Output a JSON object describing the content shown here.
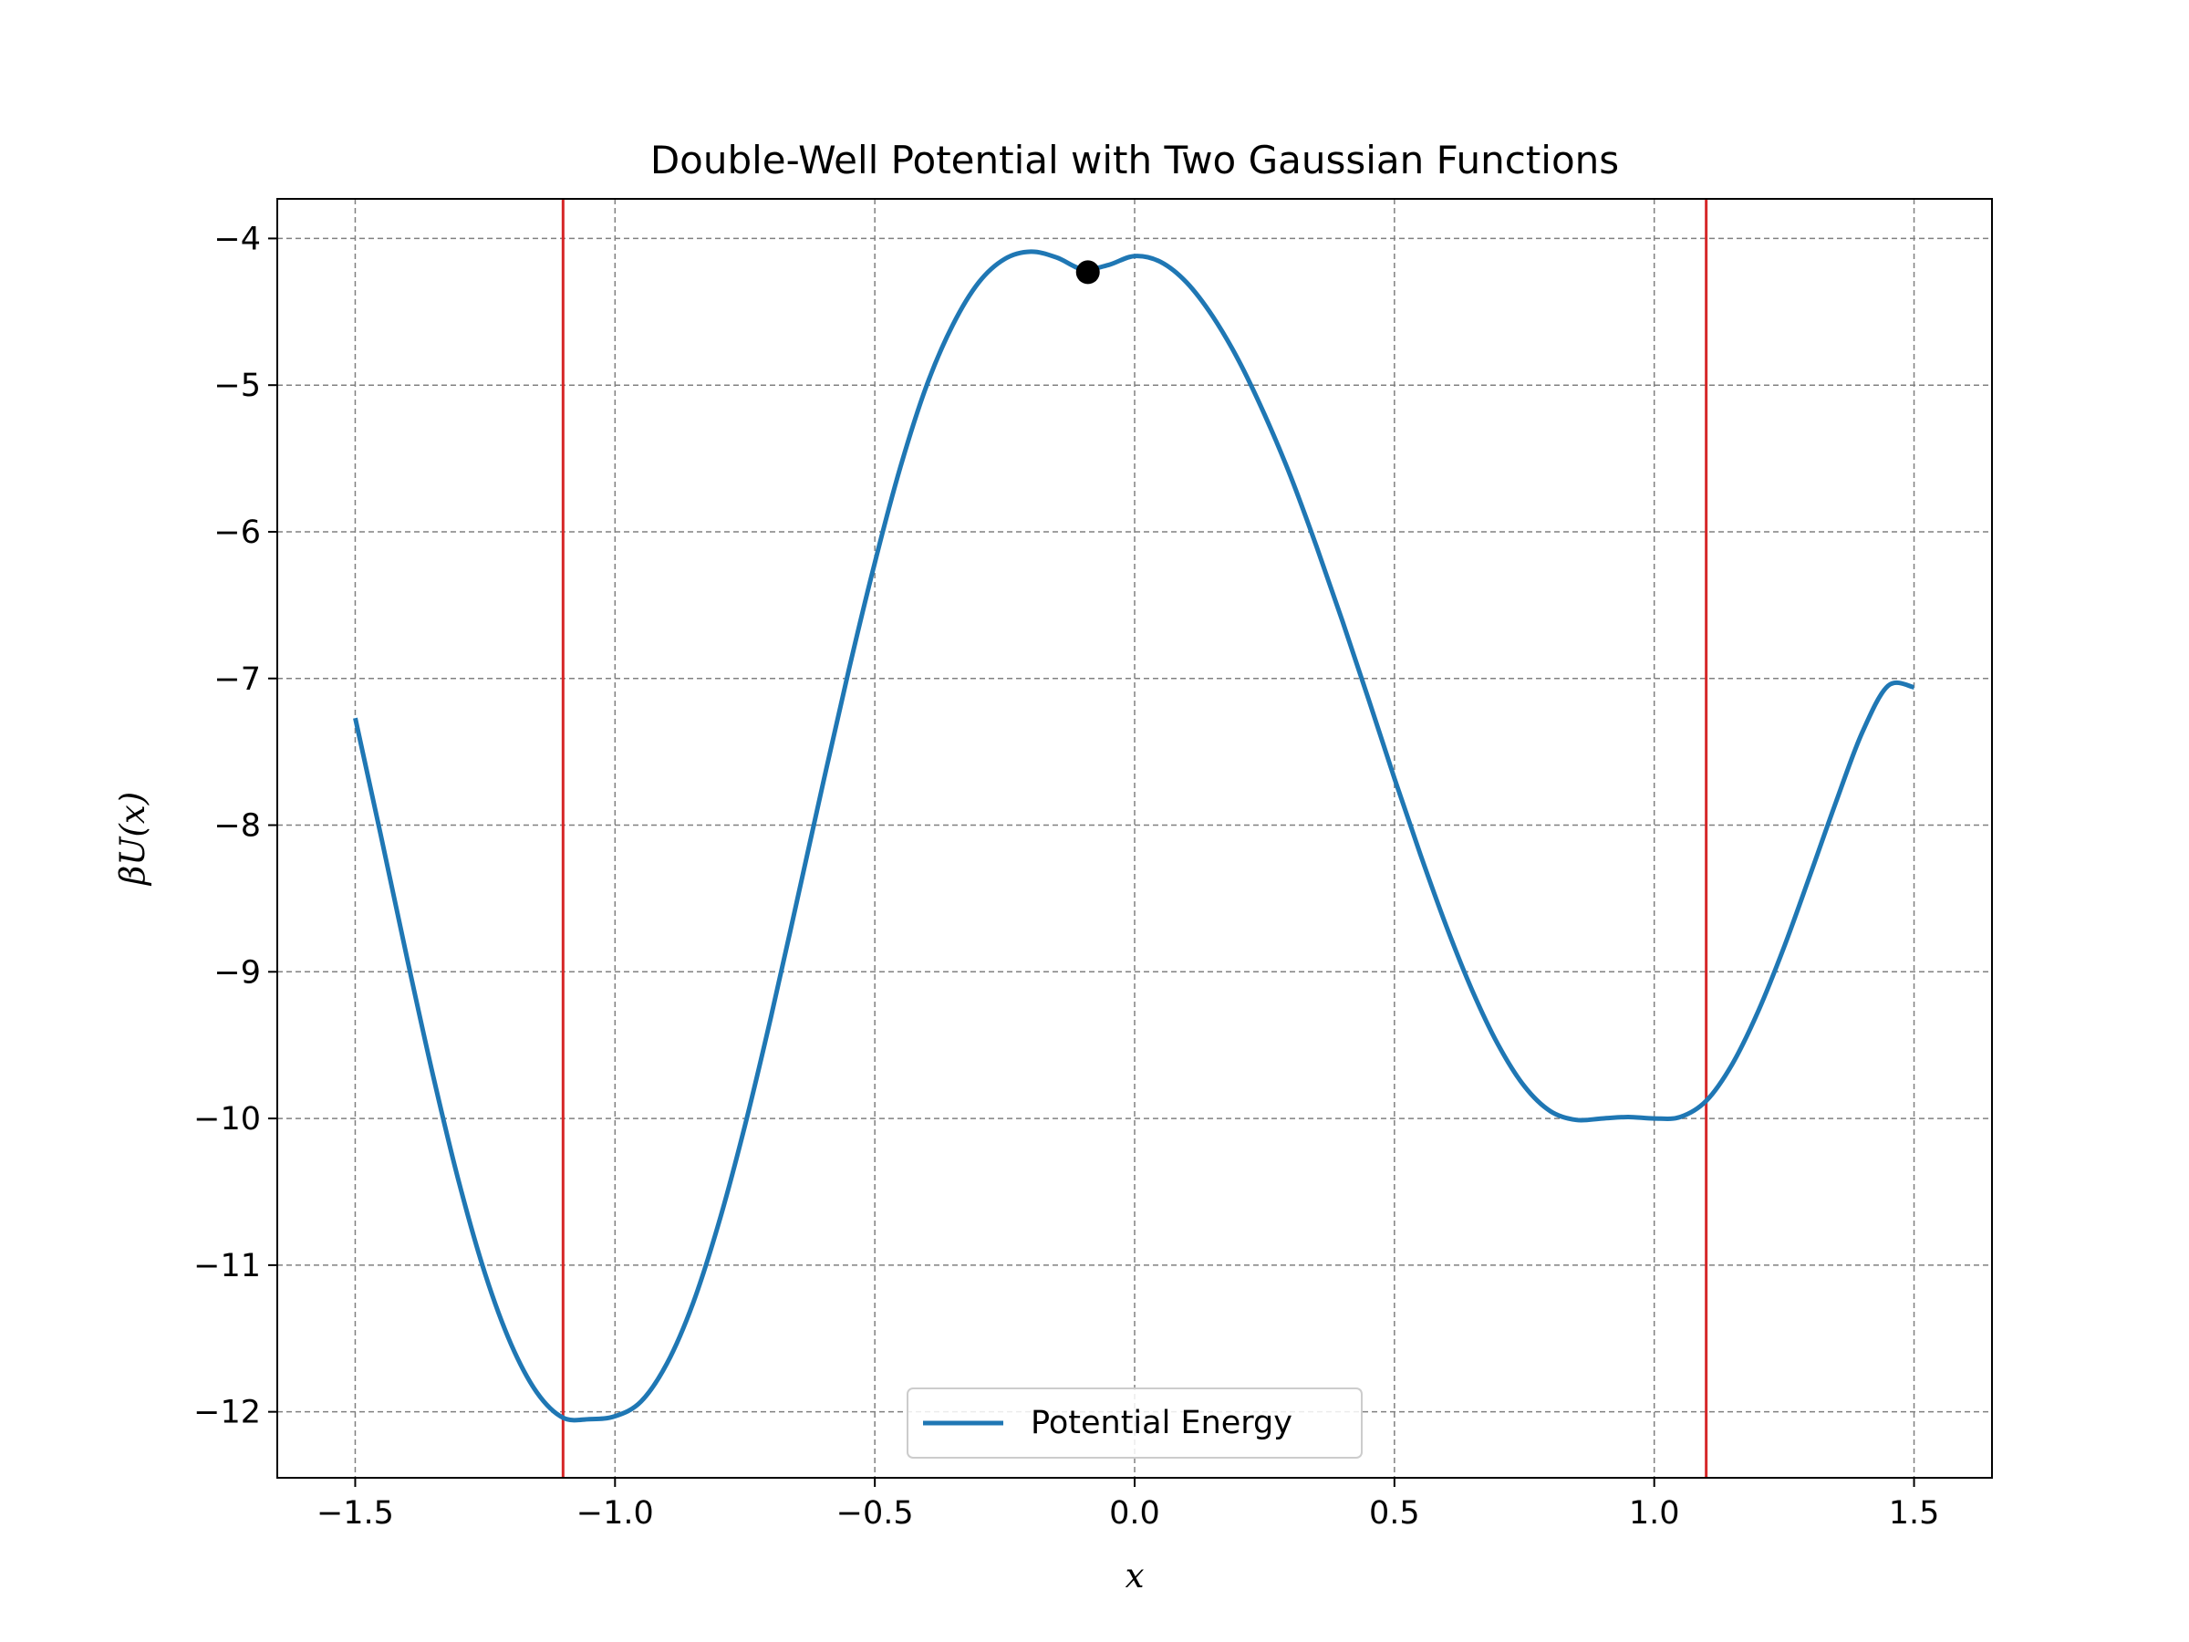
{
  "chart_data": {
    "type": "line",
    "title": "Double-Well Potential with Two Gaussian Functions",
    "xlabel": "x",
    "ylabel": "βU(x)",
    "xlim": [
      -1.65,
      1.65
    ],
    "ylim": [
      -12.45,
      -3.73
    ],
    "xticks": [
      -1.5,
      -1.0,
      -0.5,
      0.0,
      0.5,
      1.0,
      1.5
    ],
    "xtick_labels": [
      "−1.5",
      "−1.0",
      "−0.5",
      "0.0",
      "0.5",
      "1.0",
      "1.5"
    ],
    "yticks": [
      -4,
      -5,
      -6,
      -7,
      -8,
      -9,
      -10,
      -11,
      -12
    ],
    "ytick_labels": [
      "−4",
      "−5",
      "−6",
      "−7",
      "−8",
      "−9",
      "−10",
      "−11",
      "−12"
    ],
    "grid": true,
    "legend_position": "bottom-center",
    "series": [
      {
        "name": "Potential Energy",
        "color": "#1f77b4",
        "x": [
          -1.5,
          -1.45,
          -1.4,
          -1.35,
          -1.3,
          -1.25,
          -1.2,
          -1.15,
          -1.1,
          -1.05,
          -1.0,
          -0.95,
          -0.9,
          -0.85,
          -0.8,
          -0.75,
          -0.7,
          -0.65,
          -0.6,
          -0.55,
          -0.5,
          -0.45,
          -0.4,
          -0.35,
          -0.3,
          -0.25,
          -0.2,
          -0.15,
          -0.1,
          -0.05,
          0.0,
          0.05,
          0.1,
          0.15,
          0.2,
          0.25,
          0.3,
          0.35,
          0.4,
          0.45,
          0.5,
          0.55,
          0.6,
          0.65,
          0.7,
          0.75,
          0.8,
          0.85,
          0.9,
          0.95,
          1.0,
          1.05,
          1.1,
          1.15,
          1.2,
          1.25,
          1.3,
          1.35,
          1.4,
          1.45,
          1.5
        ],
        "y": [
          -7.27,
          -8.08,
          -8.91,
          -9.71,
          -10.44,
          -11.06,
          -11.54,
          -11.87,
          -12.04,
          -12.05,
          -12.03,
          -11.93,
          -11.67,
          -11.26,
          -10.71,
          -10.05,
          -9.31,
          -8.52,
          -7.72,
          -6.94,
          -6.21,
          -5.55,
          -5.0,
          -4.59,
          -4.3,
          -4.14,
          -4.09,
          -4.13,
          -4.21,
          -4.18,
          -4.12,
          -4.16,
          -4.3,
          -4.53,
          -4.83,
          -5.2,
          -5.62,
          -6.1,
          -6.61,
          -7.14,
          -7.68,
          -8.2,
          -8.69,
          -9.13,
          -9.5,
          -9.78,
          -9.95,
          -10.01,
          -10.0,
          -9.99,
          -10.0,
          -9.99,
          -9.88,
          -9.63,
          -9.27,
          -8.83,
          -8.34,
          -7.84,
          -7.37,
          -7.05,
          -7.06
        ]
      }
    ],
    "vertical_lines": [
      {
        "x": -1.1,
        "color": "#d62728"
      },
      {
        "x": 1.1,
        "color": "#d62728"
      }
    ],
    "markers": [
      {
        "x": -0.09,
        "y": -4.23,
        "color": "#000000"
      }
    ]
  }
}
